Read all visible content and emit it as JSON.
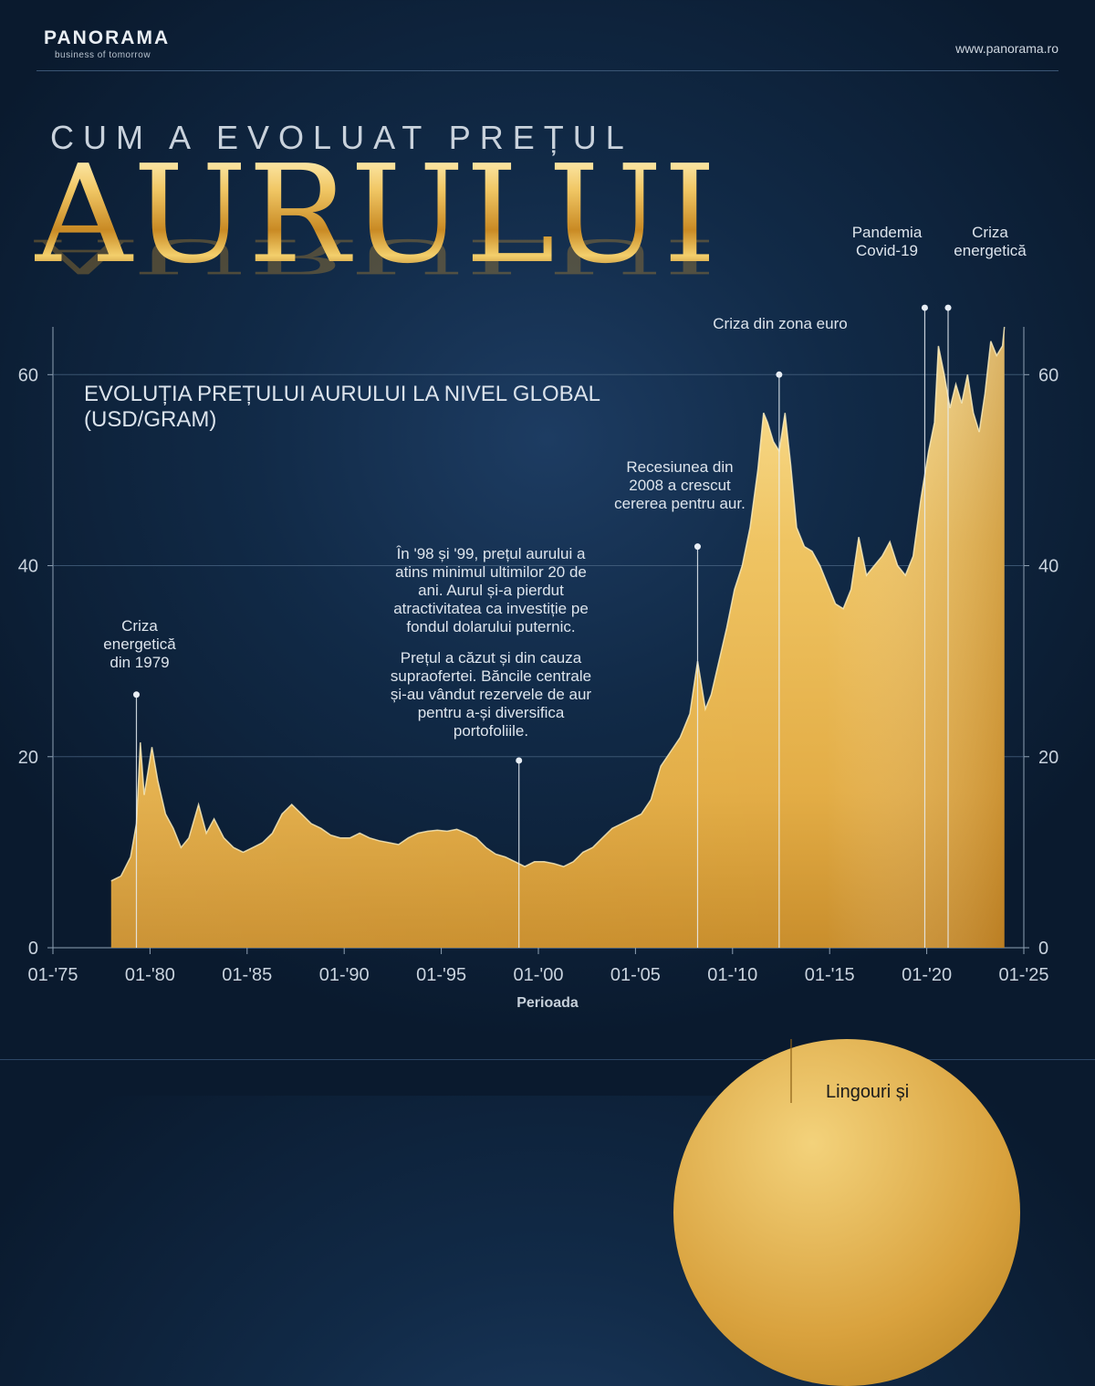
{
  "header": {
    "logo_name": "PANORAMA",
    "logo_tagline": "business of tomorrow",
    "website": "www.panorama.ro"
  },
  "title": {
    "line1": "CUM A EVOLUAT PREȚUL",
    "line2": "AURULUI"
  },
  "chart_heading": {
    "line1": "EVOLUȚIA PREȚULUI AURULUI LA NIVEL GLOBAL",
    "line2": "(USD/GRAM)"
  },
  "annotations": [
    {
      "id": "criza-1979",
      "lines": [
        "Criza",
        "energetică",
        "din 1979"
      ],
      "year": 1979.3,
      "value": 26.5
    },
    {
      "id": "minim-98-99",
      "lines": [
        "În '98 și '99, prețul aurului a",
        "atins minimul ultimilor 20 de",
        "ani. Aurul și-a pierdut",
        "atractivitatea ca investiție pe",
        "fondul dolarului puternic.",
        "",
        "Prețul a căzut și din cauza",
        "supraofertei. Băncile centrale",
        "și-au vândut rezervele de aur",
        "pentru a-și diversifica",
        "portofoliile."
      ],
      "year": 1999.0,
      "value": 19.6
    },
    {
      "id": "recesiune-2008",
      "lines": [
        "Recesiunea din",
        "2008 a crescut",
        "cererea pentru aur."
      ],
      "year": 2008.2,
      "value": 42.0
    },
    {
      "id": "criza-euro",
      "lines": [
        "Criza din zona euro"
      ],
      "year": 2012.4,
      "value": 60.0
    },
    {
      "id": "pandemia",
      "lines": [
        "Pandemia",
        "Covid-19"
      ],
      "year": 2019.9,
      "value": 67.0
    },
    {
      "id": "criza-energetica",
      "lines": [
        "Criza",
        "energetică"
      ],
      "year": 2021.1,
      "value": 67.0
    }
  ],
  "chart_data": {
    "type": "area",
    "title": "EVOLUȚIA PREȚULUI AURULUI LA NIVEL GLOBAL (USD/GRAM)",
    "xlabel": "Perioada",
    "ylabel": "",
    "x_tick_labels": [
      "01-'75",
      "01-'80",
      "01-'85",
      "01-'90",
      "01-'95",
      "01-'00",
      "01-'05",
      "01-'10",
      "01-'15",
      "01-'20",
      "01-'25"
    ],
    "x_ticks": [
      1975,
      1980,
      1985,
      1990,
      1995,
      2000,
      2005,
      2010,
      2015,
      2020,
      2025
    ],
    "y_ticks": [
      0,
      20,
      40,
      60
    ],
    "xlim": [
      1975,
      2025
    ],
    "ylim": [
      0,
      65
    ],
    "grid": "horizontal",
    "series": [
      {
        "name": "",
        "x": [
          1978.0,
          1978.5,
          1979.0,
          1979.3,
          1979.5,
          1979.7,
          1979.9,
          1980.1,
          1980.4,
          1980.8,
          1981.2,
          1981.6,
          1982.0,
          1982.5,
          1982.9,
          1983.3,
          1983.8,
          1984.3,
          1984.8,
          1985.3,
          1985.8,
          1986.3,
          1986.8,
          1987.3,
          1987.8,
          1988.3,
          1988.8,
          1989.3,
          1989.8,
          1990.3,
          1990.8,
          1991.3,
          1991.8,
          1992.3,
          1992.8,
          1993.3,
          1993.8,
          1994.3,
          1994.8,
          1995.3,
          1995.8,
          1996.3,
          1996.8,
          1997.3,
          1997.8,
          1998.3,
          1998.8,
          1999.3,
          1999.8,
          2000.3,
          2000.8,
          2001.3,
          2001.8,
          2002.3,
          2002.8,
          2003.3,
          2003.8,
          2004.3,
          2004.8,
          2005.3,
          2005.8,
          2006.3,
          2006.8,
          2007.3,
          2007.8,
          2008.2,
          2008.6,
          2008.9,
          2009.3,
          2009.7,
          2010.1,
          2010.5,
          2010.9,
          2011.3,
          2011.6,
          2011.8,
          2012.1,
          2012.4,
          2012.7,
          2013.0,
          2013.3,
          2013.7,
          2014.1,
          2014.5,
          2014.9,
          2015.3,
          2015.7,
          2016.1,
          2016.5,
          2016.9,
          2017.3,
          2017.7,
          2018.1,
          2018.5,
          2018.9,
          2019.3,
          2019.7,
          2020.1,
          2020.4,
          2020.6,
          2020.9,
          2021.2,
          2021.5,
          2021.8,
          2022.1,
          2022.4,
          2022.7,
          2023.0,
          2023.3,
          2023.6,
          2023.9,
          2024.0
        ],
        "values": [
          7.0,
          7.5,
          9.5,
          13.0,
          21.5,
          16.0,
          18.5,
          21.0,
          17.5,
          14.0,
          12.5,
          10.5,
          11.5,
          15.0,
          12.0,
          13.5,
          11.5,
          10.5,
          10.0,
          10.5,
          11.0,
          12.0,
          14.0,
          15.0,
          14.0,
          13.0,
          12.5,
          11.8,
          11.5,
          11.5,
          12.0,
          11.5,
          11.2,
          11.0,
          10.8,
          11.5,
          12.0,
          12.2,
          12.3,
          12.2,
          12.4,
          12.0,
          11.5,
          10.5,
          9.8,
          9.5,
          9.0,
          8.5,
          9.0,
          9.0,
          8.8,
          8.5,
          9.0,
          10.0,
          10.5,
          11.5,
          12.5,
          13.0,
          13.5,
          14.0,
          15.5,
          19.0,
          20.5,
          22.0,
          24.5,
          30.0,
          25.0,
          26.5,
          30.0,
          33.5,
          37.5,
          40.0,
          44.0,
          50.0,
          56.0,
          55.0,
          53.0,
          52.0,
          56.0,
          50.5,
          44.0,
          42.0,
          41.5,
          40.0,
          38.0,
          36.0,
          35.5,
          37.5,
          43.0,
          39.0,
          40.0,
          41.0,
          42.5,
          40.0,
          39.0,
          41.0,
          47.0,
          52.0,
          55.0,
          63.0,
          60.0,
          56.5,
          59.0,
          57.0,
          60.0,
          56.0,
          54.0,
          58.0,
          63.5,
          62.0,
          63.0,
          65.0
        ]
      }
    ]
  },
  "bottom_teaser": "Lingouri și"
}
